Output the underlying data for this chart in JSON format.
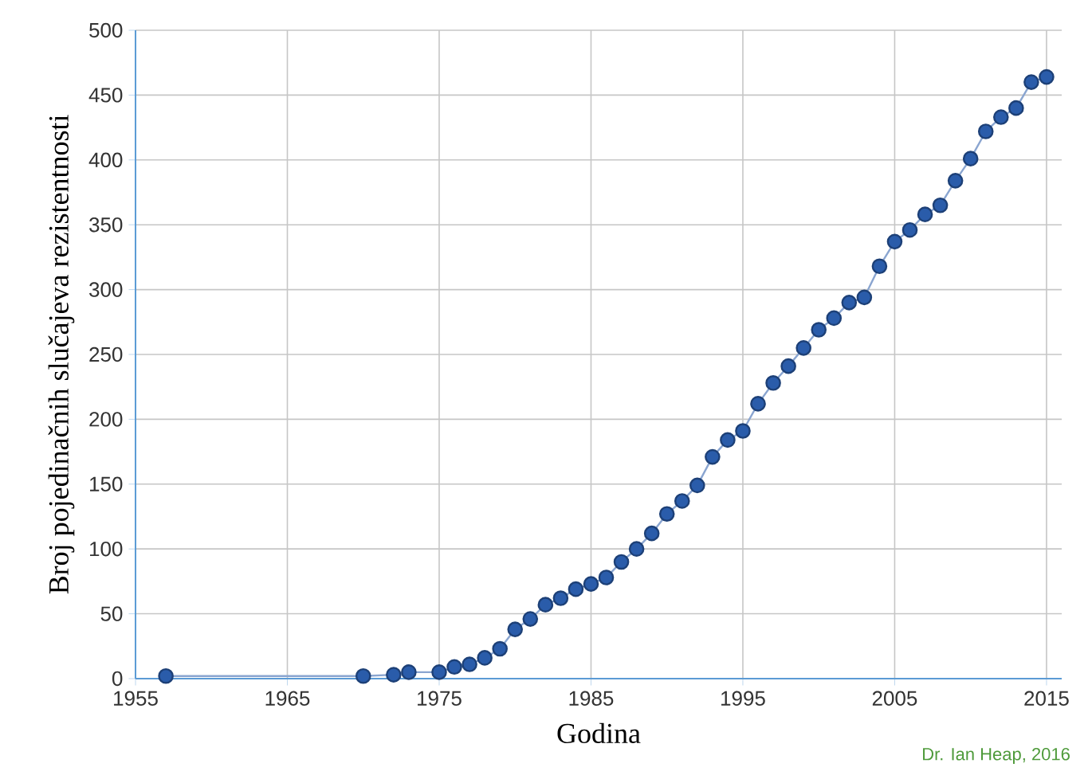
{
  "chart_data": {
    "type": "line",
    "xlabel": "Godina",
    "ylabel": "Broj pojedinačnih slučajeva rezistentnosti",
    "x": [
      1957,
      1970,
      1972,
      1973,
      1975,
      1976,
      1977,
      1978,
      1979,
      1980,
      1981,
      1982,
      1983,
      1984,
      1985,
      1986,
      1987,
      1988,
      1989,
      1990,
      1991,
      1992,
      1993,
      1994,
      1995,
      1996,
      1997,
      1998,
      1999,
      2000,
      2001,
      2002,
      2003,
      2004,
      2005,
      2006,
      2007,
      2008,
      2009,
      2010,
      2011,
      2012,
      2013,
      2014,
      2015
    ],
    "series": [
      {
        "color": "#2a5caa",
        "values": [
          2,
          2,
          3,
          5,
          5,
          9,
          11,
          16,
          23,
          38,
          46,
          57,
          62,
          69,
          73,
          78,
          90,
          100,
          112,
          127,
          137,
          149,
          171,
          184,
          191,
          212,
          228,
          241,
          255,
          269,
          278,
          290,
          294,
          318,
          337,
          346,
          358,
          365,
          384,
          401,
          422,
          433,
          440,
          460,
          464
        ]
      }
    ],
    "xlim": [
      1955,
      2016
    ],
    "xticks": [
      1955,
      1965,
      1975,
      1985,
      1995,
      2005,
      2015
    ],
    "ylim": [
      0,
      500
    ],
    "yticks": [
      0,
      50,
      100,
      150,
      200,
      250,
      300,
      350,
      400,
      450,
      500
    ],
    "grid": true,
    "marker": "circle",
    "line_style": "solid",
    "annotations": [
      "Dr. Ian Heap, 2016"
    ]
  }
}
